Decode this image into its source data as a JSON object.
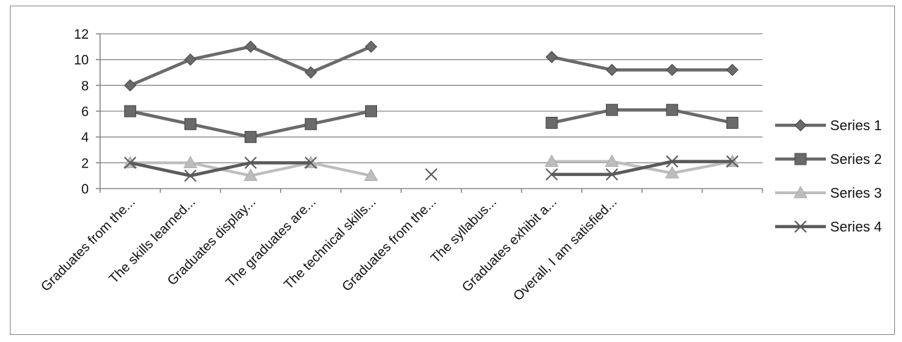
{
  "chart_data": {
    "type": "line",
    "categories": [
      "Graduates from the...",
      "The skills learned...",
      "Graduates display...",
      "The graduates are...",
      "The technical skills...",
      "Graduates from the...",
      "The syllabus...",
      "Graduates exhibit a...",
      "Overall, I am satisfied...",
      "",
      ""
    ],
    "series": [
      {
        "name": "Series 1",
        "marker": "diamond",
        "color": "#6a6a6a",
        "values": [
          8,
          10,
          11,
          9,
          11,
          null,
          null,
          10.2,
          9.2,
          9.2,
          9.2
        ]
      },
      {
        "name": "Series 2",
        "marker": "square",
        "color": "#6a6a6a",
        "values": [
          6,
          5,
          4,
          5,
          6,
          null,
          null,
          5.1,
          6.1,
          6.1,
          5.1
        ]
      },
      {
        "name": "Series 3",
        "marker": "triangle",
        "color": "#bdbdbd",
        "values": [
          2,
          2,
          1,
          2,
          1,
          null,
          null,
          2.1,
          2.1,
          1.2,
          2.1
        ]
      },
      {
        "name": "Series 4",
        "marker": "x",
        "color": "#5a5a5a",
        "values": [
          2,
          1,
          2,
          2,
          null,
          1.1,
          null,
          1.1,
          1.1,
          2.1,
          2.1
        ]
      }
    ],
    "yticks": [
      0,
      2,
      4,
      6,
      8,
      10,
      12
    ],
    "ylim": [
      0,
      12
    ],
    "grid": true,
    "legend": "right",
    "title": "",
    "xlabel": "",
    "ylabel": ""
  }
}
